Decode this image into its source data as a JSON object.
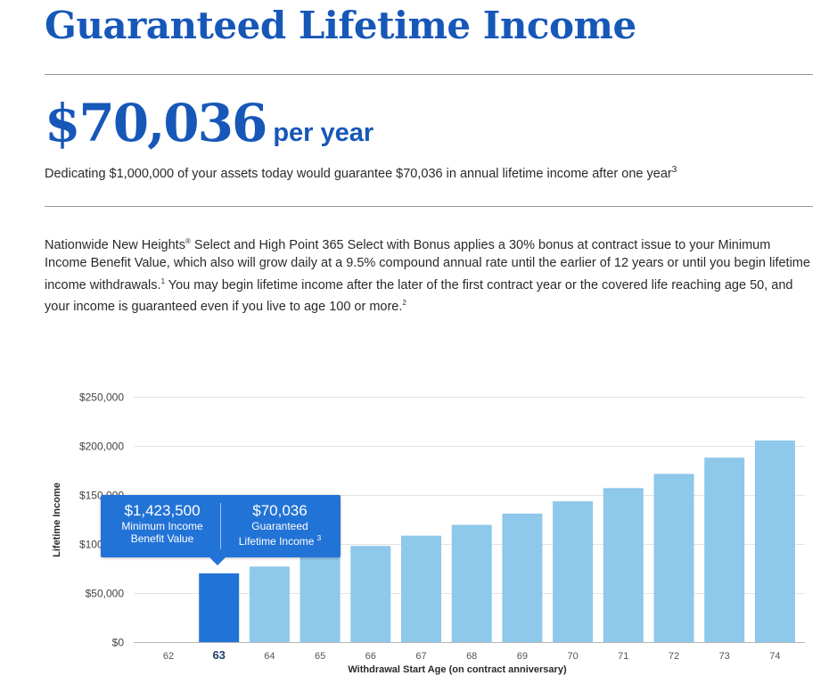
{
  "header": {
    "title": "Guaranteed Lifetime Income",
    "amount": "$70,036",
    "per_year": "per year",
    "dedication_text": "Dedicating $1,000,000 of your assets today would guarantee $70,036 in annual lifetime income after one year",
    "dedication_footnote": "3"
  },
  "description": {
    "part1": "Nationwide New Heights",
    "reg": "®",
    "part2": " Select and High Point 365 Select with Bonus applies a 30% bonus at contract issue to your Minimum Income Benefit Value, which also will grow daily at a 9.5% compound annual rate until the earlier of 12 years or until you begin lifetime income withdrawals.",
    "fn1": "1",
    "part3": " You may begin lifetime income after the later of the first contract year or the covered life reaching age 50, and your income is guaranteed even if you live to age 100 or more.",
    "fn2": "2"
  },
  "tooltip": {
    "benefit_value": "$1,423,500",
    "benefit_label_line1": "Minimum Income",
    "benefit_label_line2": "Benefit Value",
    "income_value": "$70,036",
    "income_label_line1": "Guaranteed",
    "income_label_line2": "Lifetime Income",
    "income_footnote": "3"
  },
  "colors": {
    "brand_blue": "#1757b8",
    "bar_default": "#8ec8ea",
    "bar_selected": "#2273d6",
    "tooltip_bg": "#2273d6"
  },
  "chart_data": {
    "type": "bar",
    "categories": [
      "62",
      "63",
      "64",
      "65",
      "66",
      "67",
      "68",
      "69",
      "70",
      "71",
      "72",
      "73",
      "74"
    ],
    "values": [
      0,
      70036,
      77000,
      88000,
      98000,
      108500,
      119500,
      131000,
      143500,
      157000,
      171500,
      188000,
      205500
    ],
    "selected_category": "63",
    "xlabel": "Withdrawal Start Age (on contract anniversary)",
    "ylabel": "Lifetime Income",
    "ylim": [
      0,
      250000
    ],
    "yticks": [
      0,
      50000,
      100000,
      150000,
      200000,
      250000
    ],
    "ytick_labels": [
      "$0",
      "$50,000",
      "$100,000",
      "$150,000",
      "$200,000",
      "$250,000"
    ],
    "grid": true
  }
}
